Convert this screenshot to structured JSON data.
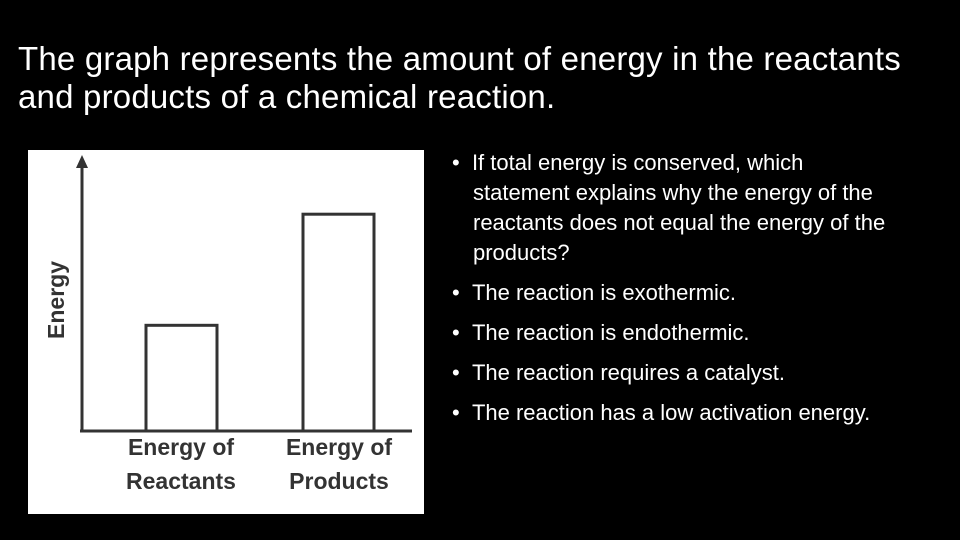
{
  "title": "The graph represents the amount of energy in the reactants and products of a chemical reaction.",
  "chart_data": {
    "type": "bar",
    "y_label": "Energy",
    "categories": [
      "Energy of Reactants",
      "Energy of Products"
    ],
    "values": [
      39,
      80
    ],
    "ylim": [
      0,
      100
    ],
    "color": "#ffffff"
  },
  "bullets": [
    "If total energy is conserved, which statement explains why the energy of the reactants does not equal the energy of the products?",
    "The reaction is exothermic.",
    "The reaction is endothermic.",
    "The reaction requires a catalyst.",
    "The reaction has a low activation energy."
  ]
}
